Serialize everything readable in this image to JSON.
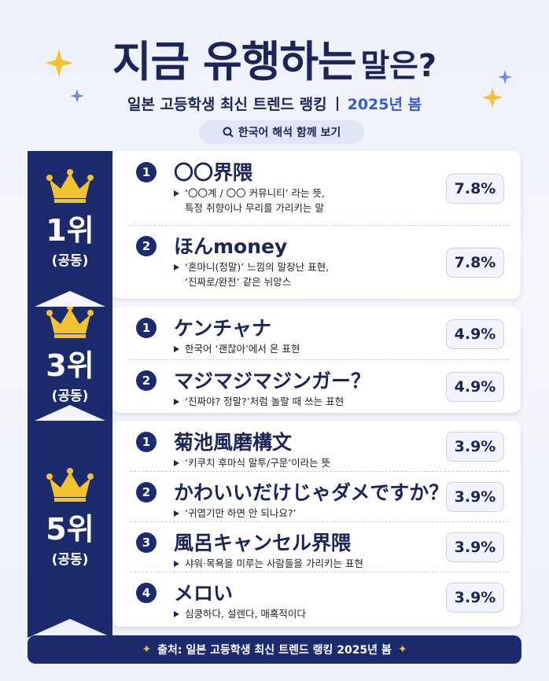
{
  "header": {
    "title_main": "지금 유행하는",
    "title_tail": "말은?",
    "subtitle": "일본 고등학생 최신 트렌드 랭킹",
    "subtitle_season": "2025년 봄",
    "button": "한국어 해석 함께 보기"
  },
  "groups": [
    {
      "rank": "1위",
      "tie": "(공동)",
      "items": [
        {
          "number": "1",
          "term": "〇〇界隈",
          "description": [
            "‘〇〇계 / 〇〇 커뮤니티’ 라는 뜻,",
            "특정 취향이나 무리를 가리키는 말"
          ],
          "percent": "7.8%"
        },
        {
          "number": "2",
          "term": "ほんmoney",
          "description": [
            "‘혼마니(정말)’ 느낌의 말장난 표현,",
            "‘진짜로/완전’ 같은 뉘앙스"
          ],
          "percent": "7.8%"
        }
      ]
    },
    {
      "rank": "3위",
      "tie": "(공동)",
      "items": [
        {
          "number": "1",
          "term": "ケンチャナ",
          "description": [
            "한국어 ‘괜찮아’에서 온 표현"
          ],
          "percent": "4.9%"
        },
        {
          "number": "2",
          "term": "マジマジマジンガー？",
          "description": [
            "‘진짜야? 정말?’처럼 놀랄 때 쓰는 표현"
          ],
          "percent": "4.9%"
        }
      ]
    },
    {
      "rank": "5위",
      "tie": "(공동)",
      "items": [
        {
          "number": "1",
          "term": "菊池風磨構文",
          "description": [
            "‘키쿠치 후마식 말투/구문’이라는 뜻"
          ],
          "percent": "3.9%"
        },
        {
          "number": "2",
          "term": "かわいいだけじゃダメですか？",
          "description": [
            "‘귀엽기만 하면 안 되나요?’"
          ],
          "percent": "3.9%"
        },
        {
          "number": "3",
          "term": "風呂キャンセル界隈",
          "description": [
            "샤워·목욕을 미루는 사람들을 가리키는 표현"
          ],
          "percent": "3.9%"
        },
        {
          "number": "4",
          "term": "メロい",
          "description": [
            "심쿵하다, 설렌다, 매혹적이다"
          ],
          "percent": "3.9%"
        }
      ]
    }
  ],
  "footer": "출처: 일본 고등학생 최신 트렌드 랭킹 2025년 봄"
}
